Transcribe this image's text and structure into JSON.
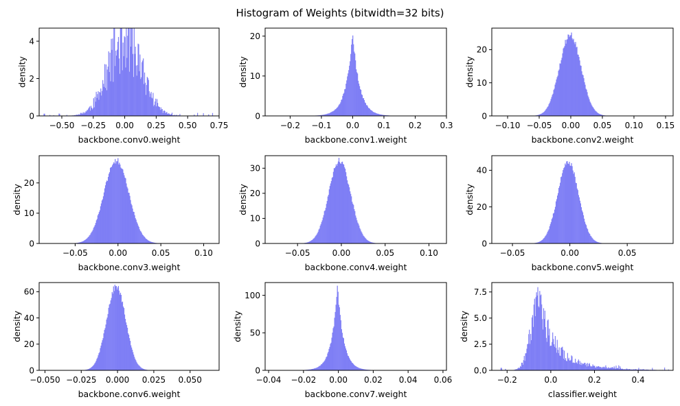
{
  "title": "Histogram of Weights (bitwidth=32 bits)",
  "bar_color": "#7f7ff5",
  "chart_data": [
    {
      "type": "bar",
      "xlabel": "backbone.conv0.weight",
      "ylabel": "density",
      "xlim": [
        -0.68,
        0.75
      ],
      "ylim": [
        0,
        4.7
      ],
      "xticks": [
        -0.5,
        -0.25,
        0.0,
        0.25,
        0.5,
        0.75
      ],
      "xticklabels": [
        "−0.50",
        "−0.25",
        "0.00",
        "0.25",
        "0.50",
        "0.75"
      ],
      "yticks": [
        0,
        2,
        4
      ],
      "yticklabels": [
        "0",
        "2",
        "4"
      ],
      "dist": {
        "kind": "normal",
        "center": 0.0,
        "sigma": 0.13,
        "peak": 4.1,
        "range": [
          -0.65,
          0.7
        ],
        "bins": 260,
        "noise": 0.45,
        "seed": 11
      }
    },
    {
      "type": "bar",
      "xlabel": "backbone.conv1.weight",
      "ylabel": "density",
      "xlim": [
        -0.28,
        0.3
      ],
      "ylim": [
        0,
        22
      ],
      "xticks": [
        -0.2,
        -0.1,
        0.0,
        0.1,
        0.2,
        0.3
      ],
      "xticklabels": [
        "−0.2",
        "−0.1",
        "0.0",
        "0.1",
        "0.2",
        "0.3"
      ],
      "yticks": [
        0,
        10,
        20
      ],
      "yticklabels": [
        "0",
        "10",
        "20"
      ],
      "dist": {
        "kind": "laplace",
        "center": 0.0,
        "scale": 0.022,
        "peak": 20.5,
        "range": [
          -0.25,
          0.27
        ],
        "bins": 240,
        "noise": 0.06,
        "seed": 12
      }
    },
    {
      "type": "bar",
      "xlabel": "backbone.conv2.weight",
      "ylabel": "density",
      "xlim": [
        -0.125,
        0.162
      ],
      "ylim": [
        0,
        26.5
      ],
      "xticks": [
        -0.1,
        -0.05,
        0.0,
        0.05,
        0.1,
        0.15
      ],
      "xticklabels": [
        "−0.10",
        "−0.05",
        "0.00",
        "0.05",
        "0.10",
        "0.15"
      ],
      "yticks": [
        0,
        10,
        20
      ],
      "yticklabels": [
        "0",
        "10",
        "20"
      ],
      "dist": {
        "kind": "normal",
        "center": -0.001,
        "sigma": 0.017,
        "peak": 24.5,
        "range": [
          -0.11,
          0.15
        ],
        "bins": 240,
        "noise": 0.04,
        "seed": 13
      }
    },
    {
      "type": "bar",
      "xlabel": "backbone.conv3.weight",
      "ylabel": "density",
      "xlim": [
        -0.092,
        0.118
      ],
      "ylim": [
        0,
        29
      ],
      "xticks": [
        -0.05,
        0.0,
        0.05,
        0.1
      ],
      "xticklabels": [
        "−0.05",
        "0.00",
        "0.05",
        "0.10"
      ],
      "yticks": [
        0,
        10,
        20
      ],
      "yticklabels": [
        "0",
        "10",
        "20"
      ],
      "dist": {
        "kind": "normal",
        "center": -0.002,
        "sigma": 0.0145,
        "peak": 27.5,
        "range": [
          -0.085,
          0.11
        ],
        "bins": 240,
        "noise": 0.04,
        "seed": 14
      }
    },
    {
      "type": "bar",
      "xlabel": "backbone.conv4.weight",
      "ylabel": "density",
      "xlim": [
        -0.087,
        0.12
      ],
      "ylim": [
        0,
        35
      ],
      "xticks": [
        -0.05,
        0.0,
        0.05,
        0.1
      ],
      "xticklabels": [
        "−0.05",
        "0.00",
        "0.05",
        "0.10"
      ],
      "yticks": [
        0,
        10,
        20,
        30
      ],
      "yticklabels": [
        "0",
        "10",
        "20",
        "30"
      ],
      "dist": {
        "kind": "normal",
        "center": -0.002,
        "sigma": 0.0125,
        "peak": 33,
        "range": [
          -0.08,
          0.11
        ],
        "bins": 240,
        "noise": 0.04,
        "seed": 15
      }
    },
    {
      "type": "bar",
      "xlabel": "backbone.conv5.weight",
      "ylabel": "density",
      "xlim": [
        -0.068,
        0.09
      ],
      "ylim": [
        0,
        48
      ],
      "xticks": [
        -0.05,
        0.0,
        0.05
      ],
      "xticklabels": [
        "−0.05",
        "0.00",
        "0.05"
      ],
      "yticks": [
        0,
        20,
        40
      ],
      "yticklabels": [
        "0",
        "20",
        "40"
      ],
      "dist": {
        "kind": "normal",
        "center": -0.0015,
        "sigma": 0.009,
        "peak": 45,
        "range": [
          -0.062,
          0.085
        ],
        "bins": 240,
        "noise": 0.04,
        "seed": 16
      }
    },
    {
      "type": "bar",
      "xlabel": "backbone.conv6.weight",
      "ylabel": "density",
      "xlim": [
        -0.054,
        0.07
      ],
      "ylim": [
        0,
        67
      ],
      "xticks": [
        -0.05,
        -0.025,
        0.0,
        0.025,
        0.05
      ],
      "xticklabels": [
        "−0.050",
        "−0.025",
        "0.000",
        "0.025",
        "0.050"
      ],
      "yticks": [
        0,
        20,
        40,
        60
      ],
      "yticklabels": [
        "0",
        "20",
        "40",
        "60"
      ],
      "dist": {
        "kind": "normal",
        "center": -0.001,
        "sigma": 0.0066,
        "peak": 64,
        "range": [
          -0.05,
          0.065
        ],
        "bins": 240,
        "noise": 0.04,
        "seed": 17
      }
    },
    {
      "type": "bar",
      "xlabel": "backbone.conv7.weight",
      "ylabel": "density",
      "xlim": [
        -0.042,
        0.062
      ],
      "ylim": [
        0,
        117
      ],
      "xticks": [
        -0.04,
        -0.02,
        0.0,
        0.02,
        0.04,
        0.06
      ],
      "xticklabels": [
        "−0.04",
        "−0.02",
        "0.00",
        "0.02",
        "0.04",
        "0.06"
      ],
      "yticks": [
        0,
        50,
        100
      ],
      "yticklabels": [
        "0",
        "50",
        "100"
      ],
      "dist": {
        "kind": "laplace",
        "center": -0.0005,
        "scale": 0.0035,
        "peak": 111,
        "range": [
          -0.038,
          0.058
        ],
        "bins": 240,
        "noise": 0.05,
        "seed": 18
      }
    },
    {
      "type": "bar",
      "xlabel": "classifier.weight",
      "ylabel": "density",
      "xlim": [
        -0.27,
        0.56
      ],
      "ylim": [
        0,
        8.4
      ],
      "xticks": [
        -0.2,
        0.0,
        0.2,
        0.4
      ],
      "xticklabels": [
        "−0.2",
        "0.0",
        "0.2",
        "0.4"
      ],
      "yticks": [
        0.0,
        2.5,
        5.0,
        7.5
      ],
      "yticklabels": [
        "0.0",
        "2.5",
        "5.0",
        "7.5"
      ],
      "dist": {
        "kind": "skew",
        "mode": -0.055,
        "left_sigma": 0.035,
        "right_scale": 0.11,
        "peak": 7.1,
        "range": [
          -0.23,
          0.54
        ],
        "bins": 260,
        "noise": 0.35,
        "seed": 19
      }
    }
  ]
}
